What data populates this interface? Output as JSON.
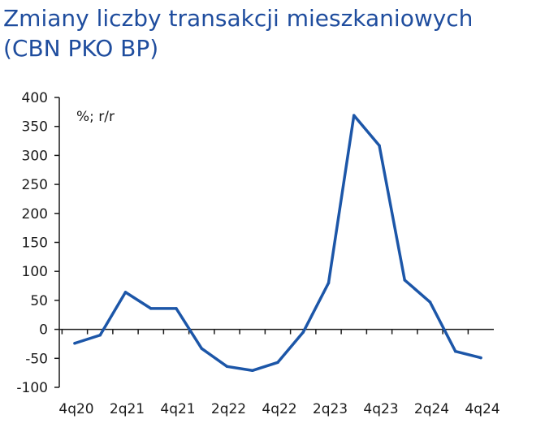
{
  "title_line1": "Zmiany liczby transakcji mieszkaniowych",
  "title_line2": "(CBN PKO BP)",
  "chart_data": {
    "type": "line",
    "unit_label": "%; r/r",
    "ylim": [
      -100,
      400
    ],
    "yticks": [
      400,
      350,
      300,
      250,
      200,
      150,
      100,
      50,
      0,
      -50,
      -100
    ],
    "x": [
      "4q20",
      "1q21",
      "2q21",
      "3q21",
      "4q21",
      "1q22",
      "2q22",
      "3q22",
      "4q22",
      "1q23",
      "2q23",
      "3q23",
      "4q23",
      "1q24",
      "2q24",
      "3q24",
      "4q24"
    ],
    "xtick_labels": [
      "4q20",
      "2q21",
      "4q21",
      "2q22",
      "4q22",
      "2q23",
      "4q23",
      "2q24",
      "4q24"
    ],
    "series": [
      {
        "values": [
          -24,
          -10,
          64,
          36,
          36,
          -33,
          -64,
          -71,
          -57,
          -5,
          80,
          369,
          317,
          85,
          47,
          -38,
          -49
        ]
      }
    ],
    "line_color": "#1c56a8",
    "grid": false,
    "legend": "none"
  }
}
